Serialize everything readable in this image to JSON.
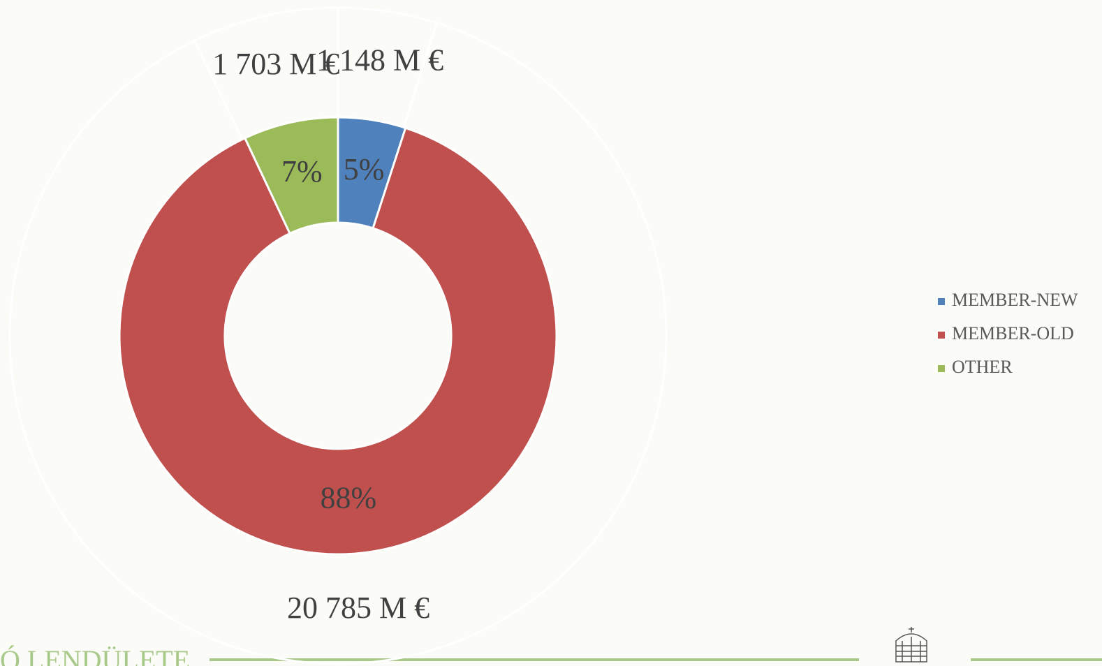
{
  "chart_data": {
    "type": "donut",
    "categories": [
      "MEMBER-NEW",
      "MEMBER-OLD",
      "OTHER"
    ],
    "colors": [
      "#4f81bd",
      "#c0504d",
      "#9bbb59"
    ],
    "values": [
      5,
      88,
      7
    ],
    "value_labels": [
      "5%",
      "88%",
      "7%"
    ],
    "outer_values": [
      1148,
      20785,
      1703
    ],
    "outer_value_labels": [
      "1 148 M €",
      "20 785 M €",
      "1 703 M €"
    ],
    "legend": "right"
  },
  "footer": {
    "text": "Ó LENDÜLETE"
  }
}
